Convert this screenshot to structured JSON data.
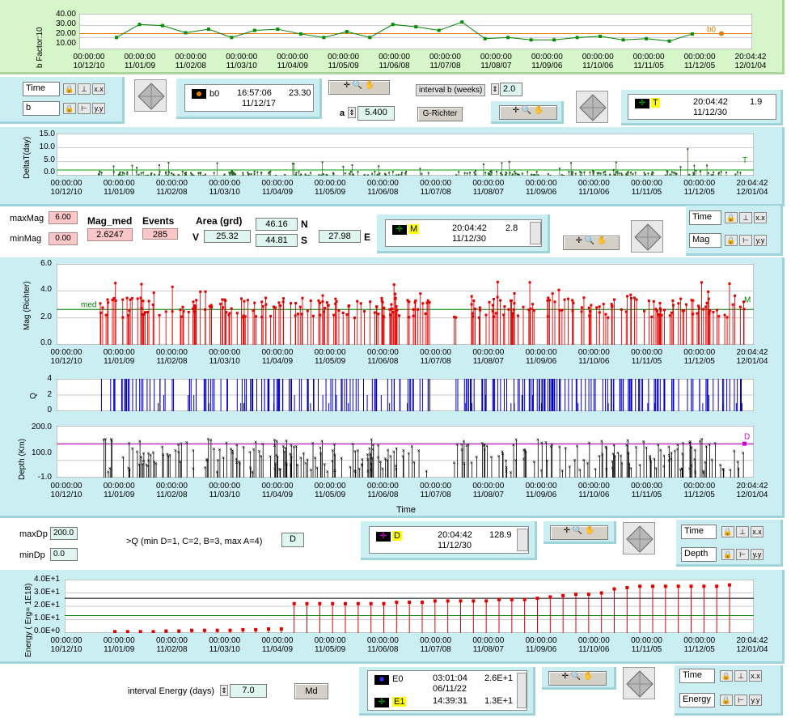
{
  "time_ticks": [
    "00:00:00\n10/12/10",
    "00:00:00\n11/01/09",
    "00:00:00\n11/02/08",
    "00:00:00\n11/03/10",
    "00:00:00\n11/04/09",
    "00:00:00\n11/05/09",
    "00:00:00\n11/06/08",
    "00:00:00\n11/07/08",
    "00:00:00\n11/08/07",
    "00:00:00\n11/09/06",
    "00:00:00\n11/10/06",
    "00:00:00\n11/11/05",
    "00:00:00\n11/12/05",
    "20:04:42\n12/01/04"
  ],
  "bchart": {
    "ylabel": "b Factor:10",
    "yticks": [
      "40.00",
      "30.00",
      "20.00",
      "10.00"
    ],
    "cursor_label": "b0",
    "selector_time": "Time",
    "selector_b": "b",
    "cursor_name": "b0",
    "cursor_time": "16:57:06",
    "cursor_date": "11/12/17",
    "cursor_value": "23.30",
    "a_label": "a",
    "a_value": "5.400",
    "interval_label": "interval b (weeks)",
    "interval_value": "2.0",
    "grichter_label": "G-Richter",
    "t_cursor_name": "T",
    "t_cursor_time": "20:04:42",
    "t_cursor_date": "11/12/30",
    "t_cursor_value": "1.9"
  },
  "delta_chart": {
    "ylabel": "DeltaT(day)",
    "yticks": [
      "15.0",
      "10.0",
      "5.0",
      "0.0"
    ],
    "cursor_label": "T"
  },
  "stats": {
    "maxmag_label": "maxMag",
    "maxmag_value": "6.00",
    "minmag_label": "minMag",
    "minmag_value": "0.00",
    "magmed_label": "Mag_med",
    "magmed_value": "2.6247",
    "events_label": "Events",
    "events_value": "285",
    "area_label": "Area (grd)",
    "n_value": "46.16",
    "n_label": "N",
    "s_value": "44.81",
    "s_label": "S",
    "v_label": "V",
    "v_value": "25.32",
    "e_value": "27.98",
    "e_label": "E",
    "m_cursor_name": "M",
    "m_cursor_time": "20:04:42",
    "m_cursor_date": "11/12/30",
    "m_cursor_value": "2.8",
    "sel_time": "Time",
    "sel_mag": "Mag"
  },
  "mag_chart": {
    "ylabel": "Mag (Richter)",
    "yticks": [
      "6.0",
      "4.0",
      "2.0",
      "0.0"
    ],
    "med_label": "med",
    "cursor_label": "M"
  },
  "q_chart": {
    "ylabel": "Q",
    "yticks": [
      "4",
      "2",
      "0"
    ]
  },
  "depth_chart": {
    "ylabel": "Depth (Km)",
    "yticks": [
      "200.0",
      "100.0",
      "-1.0"
    ],
    "xlabel": "Time",
    "cursor_label": "D"
  },
  "depth_ctrl": {
    "maxdp_label": "maxDp",
    "maxdp_value": "200.0",
    "mindp_label": "minDp",
    "mindp_value": "0.0",
    "q_text": ">Q (min D=1, C=2, B=3, max A=4)",
    "q_value": "D",
    "d_cursor_name": "D",
    "d_cursor_time": "20:04:42",
    "d_cursor_date": "11/12/30",
    "d_cursor_value": "128.9",
    "sel_time": "Time",
    "sel_depth": "Depth"
  },
  "energy_chart": {
    "ylabel": "Energy ( Erg= 1E18)",
    "yticks": [
      "4.0E+1",
      "3.0E+1",
      "2.0E+1",
      "1.0E+1",
      "0.0E+0"
    ]
  },
  "energy_ctrl": {
    "interval_label": "interval Energy (days)",
    "interval_value": "7.0",
    "md_label": "Md",
    "e0_name": "E0",
    "e0_time": "03:01:04",
    "e0_date": "06/11/22",
    "e0_value": "2.6E+1",
    "e1_name": "E1",
    "e1_time": "14:39:31",
    "e1_value": "1.3E+1",
    "sel_time": "Time",
    "sel_energy": "Energy"
  },
  "colors": {
    "green_panel": "#d6f5c8",
    "cyan_panel": "#cbeef2",
    "mag_red": "#e00000",
    "q_blue": "#0000c0",
    "depth_black": "#000000",
    "cursor_magenta": "#d000d0",
    "b_orange": "#e08000"
  },
  "chart_data": [
    {
      "type": "line",
      "ylabel": "b Factor:10",
      "ylim": [
        10,
        40
      ],
      "values": [
        20,
        31,
        30,
        24,
        27,
        20,
        26,
        27,
        23,
        20,
        25,
        20,
        31,
        29,
        26,
        33,
        19,
        20,
        18,
        18,
        20,
        21,
        18,
        19,
        17,
        23
      ]
    },
    {
      "type": "scatter",
      "ylabel": "DeltaT(day)",
      "ylim": [
        0,
        15
      ]
    },
    {
      "type": "scatter",
      "ylabel": "Mag (Richter)",
      "ylim": [
        0,
        6
      ]
    },
    {
      "type": "bar",
      "ylabel": "Q",
      "ylim": [
        0,
        4
      ]
    },
    {
      "type": "scatter",
      "ylabel": "Depth (Km)",
      "ylim": [
        -1,
        200
      ]
    },
    {
      "type": "scatter",
      "ylabel": "Energy ( Erg= 1E18)",
      "ylim": [
        0,
        40
      ],
      "values": [
        1,
        1,
        1,
        1,
        1.5,
        1.5,
        2,
        2,
        2,
        2,
        2.5,
        2.5,
        3,
        3,
        22,
        22,
        22,
        22,
        22,
        22,
        22,
        22,
        23,
        23,
        23,
        24,
        24,
        24,
        24,
        24,
        25,
        25,
        25,
        26,
        27,
        28,
        29,
        29,
        30,
        33,
        34,
        35,
        35,
        35,
        35,
        35,
        35,
        35,
        36
      ]
    }
  ]
}
